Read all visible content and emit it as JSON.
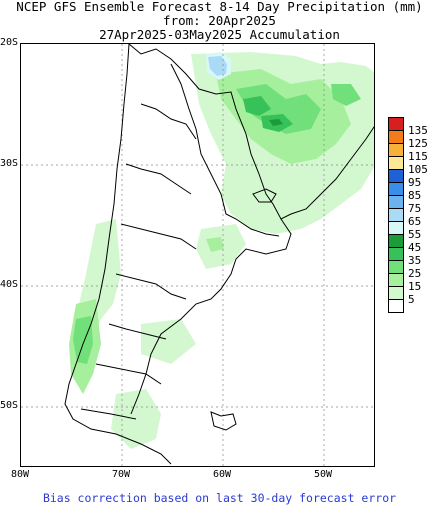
{
  "title": {
    "line1": "NCEP GFS Ensemble Forecast 8-14 Day Precipitation (mm)",
    "line2": "from: 20Apr2025",
    "line3": "27Apr2025-03May2025 Accumulation"
  },
  "latitude_labels": [
    "20S",
    "30S",
    "40S",
    "50S"
  ],
  "longitude_labels": [
    "80W",
    "70W",
    "60W",
    "50W"
  ],
  "colorbar": {
    "labels": [
      "135",
      "125",
      "115",
      "105",
      "95",
      "85",
      "75",
      "65",
      "55",
      "45",
      "35",
      "25",
      "15",
      "5"
    ],
    "colors": [
      "#d81f1f",
      "#f57a1a",
      "#f7b03a",
      "#fde895",
      "#1e61d6",
      "#3a8de8",
      "#6cb2ef",
      "#a9dbf7",
      "#d8f7f7",
      "#1c9b3a",
      "#37c159",
      "#72e07a",
      "#a6ef9c",
      "#d3f8cf",
      "#ffffff"
    ]
  },
  "footer": "Bias correction based on last 30-day forecast error"
}
